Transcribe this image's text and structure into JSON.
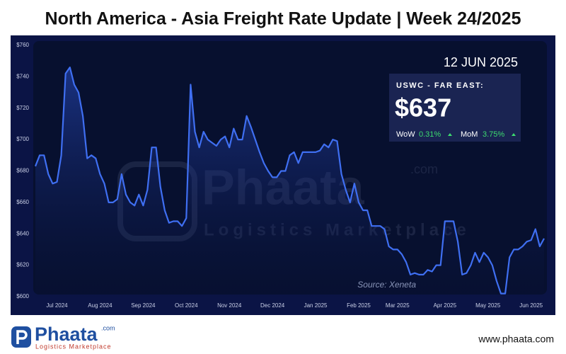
{
  "chart_data": {
    "type": "line",
    "title": "North America - Asia Freight Rate Update | Week 24/2025",
    "source": "Source: Xeneta",
    "watermark": {
      "name": "Phaata",
      "suffix": ".com",
      "tagline": "Logistics Marketplace"
    },
    "summary": {
      "date": "12 JUN 2025",
      "route": "USWC - FAR EAST:",
      "price": "$637",
      "wow_label": "WoW",
      "wow": "0.31%",
      "mom_label": "MoM",
      "mom": "3.75%"
    },
    "footer": {
      "brand": "Phaata",
      "brand_suffix": ".com",
      "tagline": "Logistics Marketplace",
      "url": "www.phaata.com"
    },
    "categories": [
      null,
      null,
      null,
      null,
      null,
      "Jul 2024",
      null,
      null,
      null,
      null,
      null,
      null,
      null,
      null,
      null,
      "Aug 2024",
      null,
      null,
      null,
      null,
      null,
      null,
      null,
      null,
      null,
      "Sep 2024",
      null,
      null,
      null,
      null,
      null,
      null,
      null,
      null,
      null,
      "Oct 2024",
      null,
      null,
      null,
      null,
      null,
      null,
      null,
      null,
      null,
      "Nov 2024",
      null,
      null,
      null,
      null,
      null,
      null,
      null,
      null,
      null,
      "Dec 2024",
      null,
      null,
      null,
      null,
      null,
      null,
      null,
      null,
      null,
      "Jan 2025",
      null,
      null,
      null,
      null,
      null,
      null,
      null,
      null,
      null,
      "Feb 2025",
      null,
      null,
      null,
      null,
      null,
      null,
      null,
      null,
      "Mar 2025",
      null,
      null,
      null,
      null,
      null,
      null,
      null,
      null,
      null,
      null,
      "Apr 2025",
      null,
      null,
      null,
      null,
      null,
      null,
      null,
      null,
      null,
      "May 2025",
      null,
      null,
      null,
      null,
      null,
      null,
      null,
      null,
      null,
      "Jun 2025",
      null,
      null,
      null
    ],
    "series": [
      {
        "name": "USWC - Far East",
        "color": "#3f6ff2",
        "values": [
          683,
          690,
          690,
          678,
          672,
          673,
          690,
          742,
          746,
          735,
          730,
          715,
          688,
          690,
          688,
          678,
          672,
          660,
          660,
          662,
          678,
          665,
          660,
          658,
          665,
          658,
          668,
          695,
          695,
          670,
          655,
          647,
          648,
          648,
          645,
          650,
          735,
          705,
          695,
          705,
          700,
          698,
          696,
          700,
          702,
          695,
          707,
          700,
          700,
          715,
          708,
          700,
          692,
          685,
          680,
          676,
          676,
          680,
          680,
          690,
          692,
          685,
          692,
          692,
          692,
          692,
          693,
          697,
          695,
          700,
          699,
          678,
          668,
          660,
          672,
          660,
          655,
          655,
          645,
          645,
          645,
          643,
          632,
          630,
          630,
          627,
          622,
          614,
          615,
          614,
          614,
          617,
          616,
          620,
          620,
          648,
          648,
          648,
          635,
          614,
          615,
          620,
          628,
          622,
          628,
          625,
          620,
          610,
          602,
          602,
          625,
          630,
          630,
          632,
          635,
          636,
          643,
          632,
          637
        ]
      }
    ],
    "ylim": [
      600,
      760
    ],
    "yticks": [
      {
        "value": 600,
        "label": "$600"
      },
      {
        "value": 620,
        "label": "$620"
      },
      {
        "value": 640,
        "label": "$640"
      },
      {
        "value": 660,
        "label": "$660"
      },
      {
        "value": 680,
        "label": "$680"
      },
      {
        "value": 700,
        "label": "$700"
      },
      {
        "value": 720,
        "label": "$720"
      },
      {
        "value": 740,
        "label": "$740"
      },
      {
        "value": 760,
        "label": "$760"
      }
    ],
    "grid": false
  }
}
